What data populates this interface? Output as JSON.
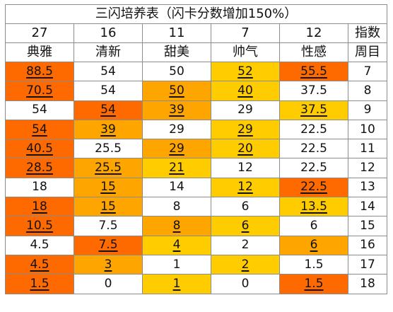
{
  "title": "三闪培养表（闪卡分数增加150%）",
  "colors": {
    "white": "#ffffff",
    "yellow": "#ffcc00",
    "orange": "#ffa500",
    "red": "#ff6a00"
  },
  "header_numbers": [
    "27",
    "16",
    "11",
    "7",
    "12",
    "指数"
  ],
  "header_labels": [
    "典雅",
    "清新",
    "甜美",
    "帅气",
    "性感",
    "周目"
  ],
  "rows": [
    [
      [
        "88.5",
        "r",
        1
      ],
      [
        "54",
        "w",
        0
      ],
      [
        "50",
        "w",
        0
      ],
      [
        "52",
        "y",
        1
      ],
      [
        "55.5",
        "r",
        1
      ],
      [
        "7",
        "w",
        0
      ]
    ],
    [
      [
        "70.5",
        "r",
        1
      ],
      [
        "54",
        "w",
        0
      ],
      [
        "50",
        "o",
        1
      ],
      [
        "40",
        "y",
        1
      ],
      [
        "37.5",
        "w",
        0
      ],
      [
        "8",
        "w",
        0
      ]
    ],
    [
      [
        "54",
        "w",
        0
      ],
      [
        "54",
        "r",
        1
      ],
      [
        "39",
        "o",
        1
      ],
      [
        "29",
        "w",
        0
      ],
      [
        "37.5",
        "y",
        1
      ],
      [
        "9",
        "w",
        0
      ]
    ],
    [
      [
        "54",
        "r",
        1
      ],
      [
        "39",
        "o",
        1
      ],
      [
        "29",
        "w",
        0
      ],
      [
        "29",
        "y",
        1
      ],
      [
        "22.5",
        "w",
        0
      ],
      [
        "10",
        "w",
        0
      ]
    ],
    [
      [
        "40.5",
        "r",
        1
      ],
      [
        "25.5",
        "w",
        0
      ],
      [
        "29",
        "o",
        1
      ],
      [
        "20",
        "y",
        1
      ],
      [
        "22.5",
        "w",
        0
      ],
      [
        "11",
        "w",
        0
      ]
    ],
    [
      [
        "28.5",
        "r",
        1
      ],
      [
        "25.5",
        "o",
        1
      ],
      [
        "21",
        "y",
        1
      ],
      [
        "12",
        "w",
        0
      ],
      [
        "22.5",
        "w",
        0
      ],
      [
        "12",
        "w",
        0
      ]
    ],
    [
      [
        "18",
        "w",
        0
      ],
      [
        "15",
        "o",
        1
      ],
      [
        "14",
        "w",
        0
      ],
      [
        "12",
        "y",
        1
      ],
      [
        "22.5",
        "r",
        1
      ],
      [
        "13",
        "w",
        0
      ]
    ],
    [
      [
        "18",
        "r",
        1
      ],
      [
        "15",
        "o",
        1
      ],
      [
        "8",
        "w",
        0
      ],
      [
        "6",
        "w",
        0
      ],
      [
        "13.5",
        "y",
        1
      ],
      [
        "14",
        "w",
        0
      ]
    ],
    [
      [
        "10.5",
        "r",
        1
      ],
      [
        "7.5",
        "w",
        0
      ],
      [
        "8",
        "o",
        1
      ],
      [
        "6",
        "y",
        1
      ],
      [
        "6",
        "w",
        0
      ],
      [
        "15",
        "w",
        0
      ]
    ],
    [
      [
        "4.5",
        "w",
        0
      ],
      [
        "7.5",
        "r",
        1
      ],
      [
        "4",
        "y",
        1
      ],
      [
        "2",
        "w",
        0
      ],
      [
        "6",
        "o",
        1
      ],
      [
        "16",
        "w",
        0
      ]
    ],
    [
      [
        "4.5",
        "r",
        1
      ],
      [
        "3",
        "o",
        1
      ],
      [
        "1",
        "w",
        0
      ],
      [
        "2",
        "y",
        1
      ],
      [
        "1.5",
        "w",
        0
      ],
      [
        "17",
        "w",
        0
      ]
    ],
    [
      [
        "1.5",
        "r",
        1
      ],
      [
        "0",
        "w",
        0
      ],
      [
        "1",
        "y",
        1
      ],
      [
        "0",
        "w",
        0
      ],
      [
        "1.5",
        "r",
        1
      ],
      [
        "18",
        "w",
        0
      ]
    ]
  ]
}
